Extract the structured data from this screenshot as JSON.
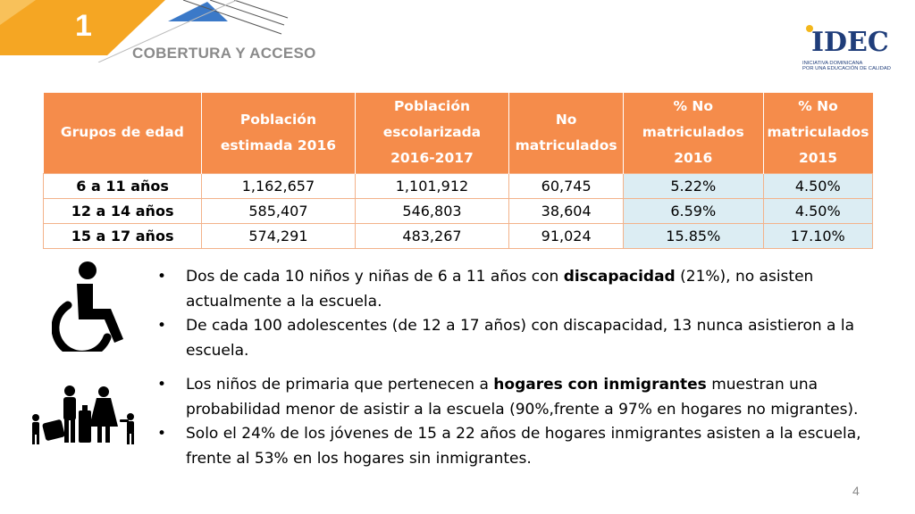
{
  "header": {
    "section_number": "1",
    "section_title": "COBERTURA Y ACCESO",
    "colors": {
      "accent": "#f5a623",
      "blue": "#3b79c8",
      "title_gray": "#8a8a8a"
    }
  },
  "logo": {
    "word": "IDEC",
    "line1": "INICIATIVA DOMINICANA",
    "line2": "POR UNA EDUCACIÓN DE CALIDAD",
    "line3": " "
  },
  "table": {
    "headers": [
      "Grupos de edad",
      "Población estimada 2016",
      "Población escolarizada 2016-2017",
      "No matriculados",
      "% No matriculados 2016",
      "% No matriculados 2015"
    ],
    "rows": [
      [
        "6 a 11 años",
        "1,162,657",
        "1,101,912",
        "60,745",
        "5.22%",
        "4.50%"
      ],
      [
        "12 a 14 años",
        "585,407",
        "546,803",
        "38,604",
        "6.59%",
        "4.50%"
      ],
      [
        "15 a 17 años",
        "574,291",
        "483,267",
        "91,024",
        "15.85%",
        "17.10%"
      ]
    ],
    "colors": {
      "header_bg": "#f58c4b",
      "pct_bg": "#dcedf3"
    }
  },
  "icons": {
    "disability": "wheelchair-icon",
    "migrants": "family-with-luggage-icon"
  },
  "bullets_disability": [
    {
      "pre": "Dos de cada 10 niños y niñas de 6 a 11 años con ",
      "bold": "discapacidad",
      "post": " (21%), no asisten actualmente a la escuela."
    },
    {
      "pre": "De cada 100 adolescentes (de 12 a 17 años) con discapacidad, 13 nunca asistieron a la escuela.",
      "bold": "",
      "post": ""
    }
  ],
  "bullets_migrants": [
    {
      "pre": "Los niños de primaria que pertenecen a ",
      "bold": "hogares con inmigrantes",
      "post": " muestran una probabilidad menor de asistir a la escuela (90%,frente a 97% en hogares no migrantes)."
    },
    {
      "pre": "Solo el 24% de los jóvenes de 15 a 22 años de hogares inmigrantes asisten a la escuela, frente al 53% en los hogares sin inmigrantes.",
      "bold": "",
      "post": ""
    }
  ],
  "page_number": "4"
}
